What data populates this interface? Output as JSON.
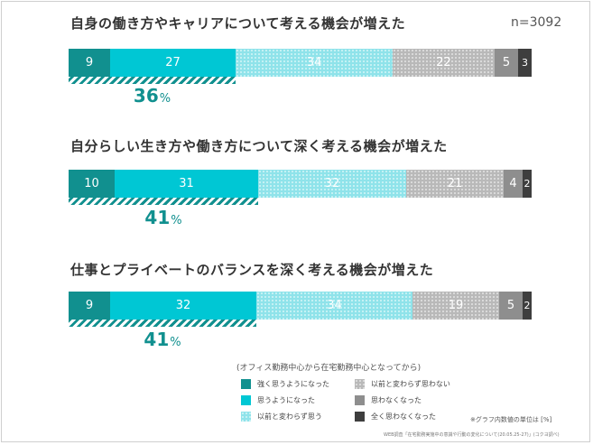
{
  "sample_size": "n=3092",
  "legend": {
    "title": "(オフィス勤務中心から在宅勤務中心となってから)",
    "items": [
      {
        "label": "強く思うようになった",
        "color": "#11908f"
      },
      {
        "label": "思うようになった",
        "color": "#00c7d4"
      },
      {
        "label": "以前と変わらず思う",
        "color": "#8fe3ea"
      },
      {
        "label": "以前と変わらず思わない",
        "color": "#b9b9b9"
      },
      {
        "label": "思わなくなった",
        "color": "#8e8e8e"
      },
      {
        "label": "全く思わなくなった",
        "color": "#3e3e3e"
      }
    ]
  },
  "note": "※グラフ内数値の単位は [%]",
  "source": "WEB調査「在宅勤務実施中の意識や行動の変化について(20.05.25-27)」(コクヨ調べ)",
  "chart_data": {
    "type": "bar",
    "orientation": "horizontal",
    "stacked": true,
    "unit": "%",
    "series_names": [
      "強く思うようになった",
      "思うようになった",
      "以前と変わらず思う",
      "以前と変わらず思わない",
      "思わなくなった",
      "全く思わなくなった"
    ],
    "questions": [
      {
        "title": "自身の働き方やキャリアについて考える機会が増えた",
        "values": [
          9,
          27,
          34,
          22,
          5,
          3
        ],
        "highlight_total": "36"
      },
      {
        "title": "自分らしい生き方や働き方について深く考える機会が増えた",
        "values": [
          10,
          31,
          32,
          21,
          4,
          2
        ],
        "highlight_total": "41"
      },
      {
        "title": "仕事とプライベートのバランスを深く考える機会が増えた",
        "values": [
          9,
          32,
          34,
          19,
          5,
          2
        ],
        "highlight_total": "41"
      }
    ]
  }
}
